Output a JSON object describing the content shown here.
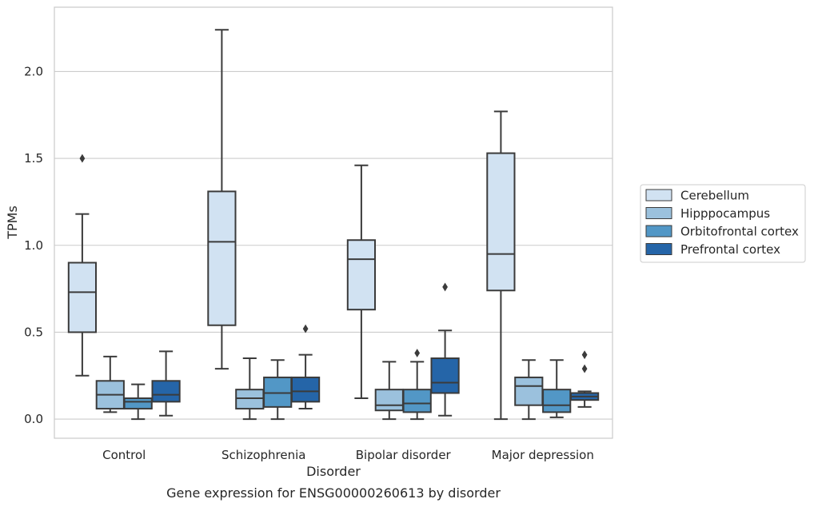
{
  "chart_data": {
    "type": "boxplot",
    "title": "",
    "caption": "Gene expression for ENSG00000260613 by disorder",
    "xlabel": "Disorder",
    "ylabel": "TPMs",
    "ylim": [
      -0.11,
      2.37
    ],
    "yticks": [
      0.0,
      0.5,
      1.0,
      1.5,
      2.0
    ],
    "ytick_labels": [
      "0.0",
      "0.5",
      "1.0",
      "1.5",
      "2.0"
    ],
    "grid": "horizontal",
    "legend_position": "right",
    "categories": [
      "Control",
      "Schizophrenia",
      "Bipolar disorder",
      "Major depression"
    ],
    "series": [
      {
        "name": "Cerebellum",
        "color": "#d1e2f2",
        "boxes": [
          {
            "whislo": 0.25,
            "q1": 0.5,
            "med": 0.73,
            "q3": 0.9,
            "whishi": 1.18,
            "fliers": [
              1.5
            ]
          },
          {
            "whislo": 0.29,
            "q1": 0.54,
            "med": 1.02,
            "q3": 1.31,
            "whishi": 2.24,
            "fliers": []
          },
          {
            "whislo": 0.12,
            "q1": 0.63,
            "med": 0.92,
            "q3": 1.03,
            "whishi": 1.46,
            "fliers": []
          },
          {
            "whislo": 0.0,
            "q1": 0.74,
            "med": 0.95,
            "q3": 1.53,
            "whishi": 1.77,
            "fliers": []
          }
        ]
      },
      {
        "name": "Hipppocampus",
        "color": "#9bc1dd",
        "boxes": [
          {
            "whislo": 0.04,
            "q1": 0.06,
            "med": 0.14,
            "q3": 0.22,
            "whishi": 0.36,
            "fliers": []
          },
          {
            "whislo": 0.0,
            "q1": 0.06,
            "med": 0.12,
            "q3": 0.17,
            "whishi": 0.35,
            "fliers": []
          },
          {
            "whislo": 0.0,
            "q1": 0.05,
            "med": 0.08,
            "q3": 0.17,
            "whishi": 0.33,
            "fliers": []
          },
          {
            "whislo": 0.0,
            "q1": 0.08,
            "med": 0.19,
            "q3": 0.24,
            "whishi": 0.34,
            "fliers": []
          }
        ]
      },
      {
        "name": "Orbitofrontal cortex",
        "color": "#5297c6",
        "boxes": [
          {
            "whislo": 0.0,
            "q1": 0.06,
            "med": 0.1,
            "q3": 0.12,
            "whishi": 0.2,
            "fliers": []
          },
          {
            "whislo": 0.0,
            "q1": 0.07,
            "med": 0.15,
            "q3": 0.24,
            "whishi": 0.34,
            "fliers": []
          },
          {
            "whislo": 0.0,
            "q1": 0.04,
            "med": 0.09,
            "q3": 0.17,
            "whishi": 0.33,
            "fliers": [
              0.38
            ]
          },
          {
            "whislo": 0.01,
            "q1": 0.04,
            "med": 0.08,
            "q3": 0.17,
            "whishi": 0.34,
            "fliers": []
          }
        ]
      },
      {
        "name": "Prefrontal cortex",
        "color": "#2565a8",
        "boxes": [
          {
            "whislo": 0.02,
            "q1": 0.1,
            "med": 0.14,
            "q3": 0.22,
            "whishi": 0.39,
            "fliers": []
          },
          {
            "whislo": 0.06,
            "q1": 0.1,
            "med": 0.16,
            "q3": 0.24,
            "whishi": 0.37,
            "fliers": [
              0.52
            ]
          },
          {
            "whislo": 0.02,
            "q1": 0.15,
            "med": 0.21,
            "q3": 0.35,
            "whishi": 0.51,
            "fliers": [
              0.76
            ]
          },
          {
            "whislo": 0.07,
            "q1": 0.11,
            "med": 0.13,
            "q3": 0.15,
            "whishi": 0.16,
            "fliers": [
              0.29,
              0.37
            ]
          }
        ]
      }
    ]
  }
}
